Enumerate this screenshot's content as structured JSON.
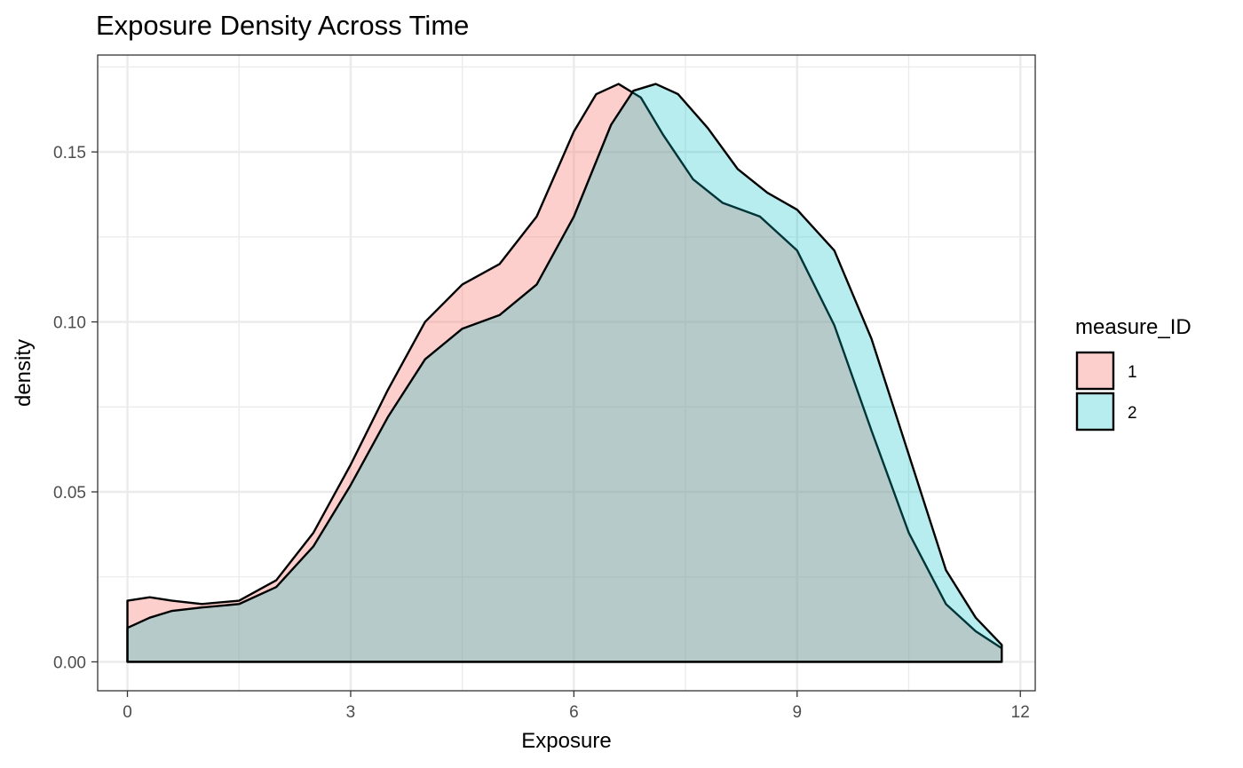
{
  "chart_data": {
    "type": "area",
    "title": "Exposure Density Across Time",
    "xlabel": "Exposure",
    "ylabel": "density",
    "xlim": [
      -0.4,
      12.2
    ],
    "ylim": [
      -0.0085,
      0.1785
    ],
    "x_ticks": [
      0,
      3,
      6,
      9,
      12
    ],
    "x_tick_labels": [
      "0",
      "3",
      "6",
      "9",
      "12"
    ],
    "y_ticks": [
      0,
      0.05,
      0.1,
      0.15
    ],
    "y_tick_labels": [
      "0.00",
      "0.05",
      "0.10",
      "0.15"
    ],
    "grid": true,
    "legend": {
      "title": "measure_ID",
      "position": "right"
    },
    "series": [
      {
        "name": "1",
        "color": "#F8766D",
        "fill_opacity": 0.35,
        "x": [
          0,
          0.3,
          0.6,
          1.0,
          1.5,
          2.0,
          2.5,
          3.0,
          3.5,
          4.0,
          4.5,
          5.0,
          5.5,
          6.0,
          6.3,
          6.6,
          6.9,
          7.2,
          7.6,
          8.0,
          8.5,
          9.0,
          9.5,
          10.0,
          10.5,
          11.0,
          11.4,
          11.75
        ],
        "y": [
          0.018,
          0.019,
          0.018,
          0.017,
          0.018,
          0.024,
          0.038,
          0.058,
          0.08,
          0.1,
          0.111,
          0.117,
          0.131,
          0.156,
          0.167,
          0.17,
          0.166,
          0.155,
          0.142,
          0.135,
          0.131,
          0.121,
          0.099,
          0.068,
          0.038,
          0.017,
          0.009,
          0.004
        ]
      },
      {
        "name": "2",
        "color": "#00BFC4",
        "fill_opacity": 0.28,
        "x": [
          0,
          0.3,
          0.6,
          1.0,
          1.5,
          2.0,
          2.5,
          3.0,
          3.5,
          4.0,
          4.5,
          5.0,
          5.5,
          6.0,
          6.5,
          6.8,
          7.1,
          7.4,
          7.8,
          8.2,
          8.6,
          9.0,
          9.5,
          10.0,
          10.5,
          11.0,
          11.4,
          11.75
        ],
        "y": [
          0.01,
          0.013,
          0.015,
          0.016,
          0.017,
          0.022,
          0.034,
          0.052,
          0.072,
          0.089,
          0.098,
          0.102,
          0.111,
          0.131,
          0.158,
          0.168,
          0.17,
          0.167,
          0.157,
          0.145,
          0.138,
          0.133,
          0.121,
          0.095,
          0.061,
          0.027,
          0.013,
          0.005
        ]
      }
    ]
  }
}
